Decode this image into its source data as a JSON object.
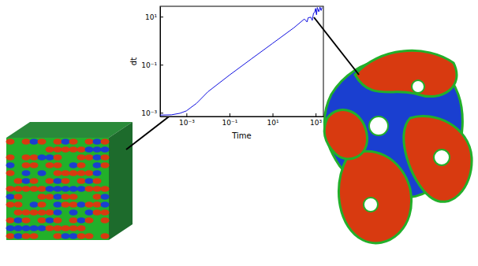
{
  "chart_data": {
    "type": "line",
    "x_label": "Time",
    "y_label": "dt",
    "log": true,
    "color": "#1010e0",
    "x": [
      6e-05,
      0.0002,
      0.0005,
      0.001,
      0.003,
      0.01,
      0.1,
      1,
      10,
      100,
      300,
      400,
      450,
      600,
      700,
      800,
      900,
      1000,
      1100,
      1200,
      1400,
      1600,
      1800,
      2000
    ],
    "values": [
      0.0008,
      0.00082,
      0.00095,
      0.0012,
      0.0025,
      0.0075,
      0.037,
      0.17,
      0.77,
      3.5,
      8,
      6,
      9,
      9.5,
      7,
      14,
      15,
      22,
      12,
      24,
      16,
      25,
      18,
      24
    ],
    "xlim": [
      6e-05,
      2300
    ],
    "ylim": [
      0.0007,
      27
    ],
    "xticks": [
      {
        "value": 0.001,
        "label": "10⁻³"
      },
      {
        "value": 0.1,
        "label": "10⁻¹"
      },
      {
        "value": 10,
        "label": "10¹"
      },
      {
        "value": 1000,
        "label": "10³"
      }
    ],
    "yticks": [
      {
        "value": 0.001,
        "label": "10⁻³"
      },
      {
        "value": 0.1,
        "label": "10⁻¹"
      },
      {
        "value": 10,
        "label": "10¹"
      }
    ]
  }
}
